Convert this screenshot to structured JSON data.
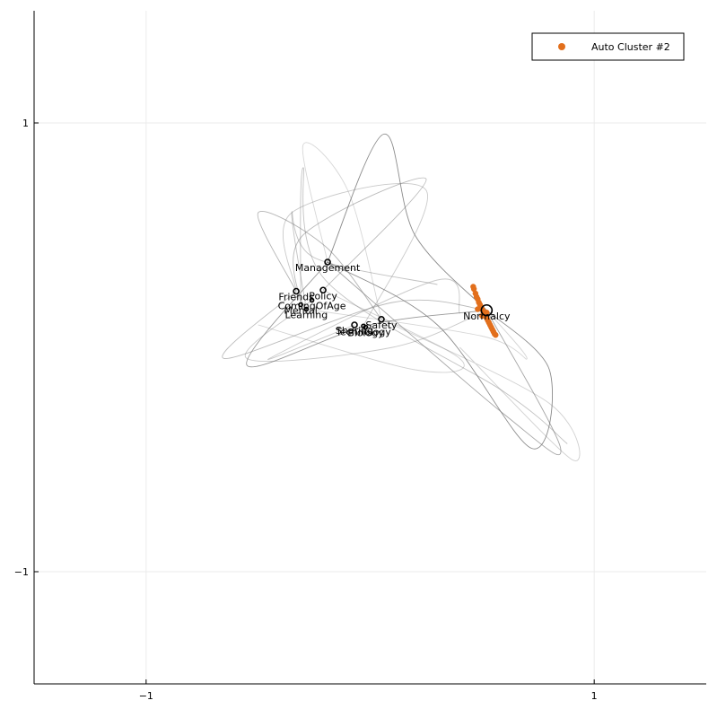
{
  "chart_data": {
    "type": "scatter",
    "xlim": [
      -1.5,
      1.5
    ],
    "ylim": [
      -1.5,
      1.5
    ],
    "x_ticks": [
      {
        "value": -1,
        "label": "−1"
      },
      {
        "value": 1,
        "label": "1"
      }
    ],
    "y_ticks": [
      {
        "value": -1,
        "label": "−1"
      },
      {
        "value": 1,
        "label": "1"
      }
    ],
    "grid": true,
    "legend": {
      "placement": "top-right",
      "entries": [
        {
          "label": "Auto Cluster #2",
          "color": "#e26f1c"
        }
      ]
    },
    "colors": {
      "cluster": "#e26f1c",
      "curve": "#777777",
      "node": "#000000",
      "grid": "#ebebeb"
    },
    "nodes": [
      {
        "label": "Management",
        "x": -0.19,
        "y": 0.38,
        "r": 3
      },
      {
        "label": "Friends",
        "x": -0.33,
        "y": 0.25,
        "r": 3
      },
      {
        "label": "Policy",
        "x": -0.21,
        "y": 0.255,
        "r": 3
      },
      {
        "label": "ComingOfAge",
        "x": -0.26,
        "y": 0.21,
        "r": 2
      },
      {
        "label": "Mental",
        "x": -0.31,
        "y": 0.19,
        "r": 2
      },
      {
        "label": "Learning",
        "x": -0.285,
        "y": 0.17,
        "r": 2
      },
      {
        "label": "Safety",
        "x": 0.05,
        "y": 0.125,
        "r": 3
      },
      {
        "label": "Sharing",
        "x": -0.07,
        "y": 0.1,
        "r": 3
      },
      {
        "label": "Technology",
        "x": -0.03,
        "y": 0.095,
        "r": 2
      },
      {
        "label": "Biology",
        "x": -0.02,
        "y": 0.09,
        "r": 2
      },
      {
        "label": "Normalcy",
        "x": 0.52,
        "y": 0.165,
        "r": 6
      }
    ],
    "cluster_points": [
      {
        "x": 0.46,
        "y": 0.27
      },
      {
        "x": 0.463,
        "y": 0.26
      },
      {
        "x": 0.47,
        "y": 0.24
      },
      {
        "x": 0.475,
        "y": 0.225
      },
      {
        "x": 0.48,
        "y": 0.215
      },
      {
        "x": 0.485,
        "y": 0.2
      },
      {
        "x": 0.49,
        "y": 0.19
      },
      {
        "x": 0.495,
        "y": 0.18
      },
      {
        "x": 0.5,
        "y": 0.17
      },
      {
        "x": 0.505,
        "y": 0.16
      },
      {
        "x": 0.51,
        "y": 0.15
      },
      {
        "x": 0.515,
        "y": 0.14
      },
      {
        "x": 0.52,
        "y": 0.13
      },
      {
        "x": 0.525,
        "y": 0.12
      },
      {
        "x": 0.53,
        "y": 0.11
      },
      {
        "x": 0.535,
        "y": 0.1
      },
      {
        "x": 0.54,
        "y": 0.09
      },
      {
        "x": 0.545,
        "y": 0.08
      },
      {
        "x": 0.55,
        "y": 0.07
      },
      {
        "x": 0.555,
        "y": 0.06
      },
      {
        "x": 0.56,
        "y": 0.055
      },
      {
        "x": 0.48,
        "y": 0.17
      },
      {
        "x": 0.5,
        "y": 0.14
      },
      {
        "x": 0.52,
        "y": 0.155
      }
    ],
    "curves": [
      {
        "opacity": 0.85,
        "points": [
          [
            -0.19,
            0.38
          ],
          [
            0.06,
            0.95
          ],
          [
            0.2,
            0.5
          ],
          [
            0.52,
            0.165
          ]
        ]
      },
      {
        "opacity": 0.85,
        "points": [
          [
            0.52,
            0.165
          ],
          [
            0.8,
            -0.1
          ],
          [
            0.72,
            -0.45
          ],
          [
            0.3,
            0.1
          ],
          [
            -0.19,
            0.38
          ]
        ]
      },
      {
        "opacity": 0.75,
        "points": [
          [
            -0.19,
            0.38
          ],
          [
            -0.55,
            -0.08
          ],
          [
            0.0,
            0.1
          ],
          [
            0.52,
            0.165
          ]
        ]
      },
      {
        "opacity": 0.65,
        "points": [
          [
            -0.19,
            0.38
          ],
          [
            0.6,
            -0.3
          ],
          [
            0.85,
            -0.45
          ],
          [
            0.52,
            0.165
          ]
        ]
      },
      {
        "opacity": 0.55,
        "points": [
          [
            -0.33,
            0.25
          ],
          [
            -0.5,
            0.6
          ],
          [
            -0.2,
            0.45
          ],
          [
            0.05,
            0.125
          ]
        ]
      },
      {
        "opacity": 0.5,
        "points": [
          [
            -0.33,
            0.25
          ],
          [
            -0.65,
            -0.05
          ],
          [
            0.1,
            0.2
          ],
          [
            0.52,
            0.165
          ]
        ]
      },
      {
        "opacity": 0.5,
        "points": [
          [
            -0.21,
            0.255
          ],
          [
            0.25,
            0.75
          ],
          [
            -0.3,
            0.5
          ],
          [
            -0.31,
            0.19
          ]
        ]
      },
      {
        "opacity": 0.45,
        "points": [
          [
            -0.31,
            0.19
          ],
          [
            -0.3,
            0.8
          ],
          [
            -0.2,
            0.3
          ],
          [
            0.6,
            -0.2
          ],
          [
            0.88,
            -0.43
          ]
        ]
      },
      {
        "opacity": 0.45,
        "points": [
          [
            -0.285,
            0.17
          ],
          [
            -0.35,
            0.6
          ],
          [
            -0.25,
            0.4
          ],
          [
            0.3,
            0.28
          ]
        ]
      },
      {
        "opacity": 0.4,
        "points": [
          [
            -0.26,
            0.21
          ],
          [
            -0.55,
            -0.05
          ],
          [
            0.1,
            0.0
          ],
          [
            0.52,
            0.165
          ]
        ]
      },
      {
        "opacity": 0.4,
        "points": [
          [
            -0.07,
            0.1
          ],
          [
            -0.45,
            -0.05
          ],
          [
            0.3,
            0.3
          ],
          [
            0.4,
            0.15
          ]
        ]
      },
      {
        "opacity": 0.4,
        "points": [
          [
            -0.03,
            0.095
          ],
          [
            0.25,
            0.7
          ],
          [
            -0.35,
            0.6
          ],
          [
            -0.33,
            0.25
          ]
        ]
      },
      {
        "opacity": 0.35,
        "points": [
          [
            0.05,
            0.125
          ],
          [
            0.8,
            -0.25
          ],
          [
            0.9,
            -0.5
          ],
          [
            0.4,
            0.0
          ]
        ]
      },
      {
        "opacity": 0.35,
        "points": [
          [
            -0.21,
            0.255
          ],
          [
            0.4,
            -0.05
          ],
          [
            0.2,
            -0.1
          ],
          [
            -0.5,
            0.1
          ]
        ]
      },
      {
        "opacity": 0.3,
        "points": [
          [
            -0.285,
            0.17
          ],
          [
            0.5,
            0.05
          ],
          [
            0.7,
            -0.05
          ],
          [
            0.52,
            0.165
          ]
        ]
      },
      {
        "opacity": 0.3,
        "points": [
          [
            -0.19,
            0.38
          ],
          [
            -0.3,
            0.9
          ],
          [
            -0.1,
            0.7
          ],
          [
            0.05,
            0.125
          ]
        ]
      }
    ]
  }
}
